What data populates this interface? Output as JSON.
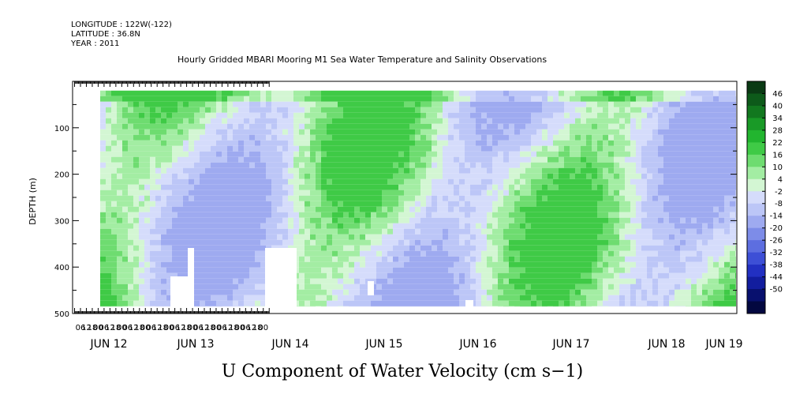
{
  "header": {
    "longitude": "LONGITUDE : 122W(-122)",
    "latitude": "LATITUDE : 36.8N",
    "year": "YEAR : 2011",
    "title": "Hourly Gridded MBARI Mooring M1 Sea Water Temperature and Salinity Observations"
  },
  "chart_data": {
    "type": "heatmap",
    "title": "Hourly Gridded MBARI Mooring M1 Sea Water Temperature and Salinity Observations",
    "variable_title": "U Component of Water Velocity (cm s−1)",
    "ylabel": "DEPTH (m)",
    "y_axis": {
      "range": [
        0,
        500
      ],
      "inverted": true,
      "ticks": [
        100,
        200,
        300,
        400,
        500
      ]
    },
    "x_axis": {
      "hour_ticks": [
        "06",
        "12",
        "18",
        "00",
        "06",
        "12",
        "18",
        "00",
        "06",
        "12",
        "18",
        "00",
        "06",
        "12",
        "18",
        "00",
        "06",
        "12",
        "18",
        "00",
        "06",
        "12",
        "18",
        "00",
        "06",
        "12",
        "18",
        "00",
        "06",
        "12",
        "18",
        "00"
      ],
      "day_labels": [
        "JUN 12",
        "JUN 13",
        "JUN 14",
        "JUN 15",
        "JUN 16",
        "JUN 17",
        "JUN 18",
        "JUN 19"
      ]
    },
    "data_extent": {
      "depth_m": [
        20,
        485
      ]
    },
    "colorbar": {
      "labels": [
        "46",
        "40",
        "34",
        "28",
        "22",
        "16",
        "10",
        "4",
        "-2",
        "-8",
        "-14",
        "-20",
        "-26",
        "-32",
        "-38",
        "-44",
        "-50"
      ],
      "colors": [
        "#0a3a14",
        "#0d5a1a",
        "#12781f",
        "#199a27",
        "#22b52f",
        "#3fca46",
        "#6edc70",
        "#a3eda3",
        "#d3f6d3",
        "#d5dcfb",
        "#bcc6f7",
        "#9eaaf0",
        "#7d8ce8",
        "#5d6ee0",
        "#3d4fd6",
        "#2230c2",
        "#121d9e",
        "#08106e",
        "#030840"
      ]
    },
    "grid": false
  }
}
